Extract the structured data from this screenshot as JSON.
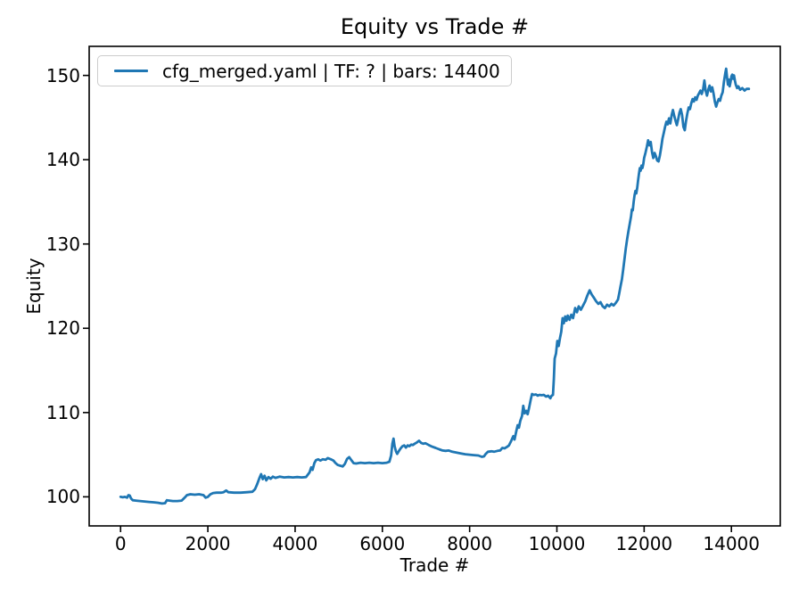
{
  "chart_data": {
    "type": "line",
    "title": "Equity vs Trade #",
    "xlabel": "Trade #",
    "ylabel": "Equity",
    "xlim": [
      -720,
      15120
    ],
    "ylim": [
      96.55,
      153.45
    ],
    "xticks": [
      0,
      2000,
      4000,
      6000,
      8000,
      10000,
      12000,
      14000
    ],
    "yticks": [
      100,
      110,
      120,
      130,
      140,
      150
    ],
    "grid": false,
    "legend_position": "upper left",
    "series": [
      {
        "name": "cfg_merged.yaml | TF: ? | bars: 14400",
        "color": "#1f77b4",
        "x": [
          0,
          50,
          100,
          150,
          180,
          210,
          240,
          280,
          350,
          450,
          550,
          650,
          750,
          850,
          950,
          1020,
          1060,
          1120,
          1200,
          1300,
          1400,
          1470,
          1520,
          1600,
          1700,
          1800,
          1900,
          1950,
          2000,
          2060,
          2120,
          2200,
          2300,
          2360,
          2420,
          2470,
          2600,
          2750,
          2900,
          3020,
          3080,
          3130,
          3180,
          3220,
          3260,
          3300,
          3340,
          3390,
          3440,
          3490,
          3550,
          3650,
          3750,
          3850,
          3950,
          4050,
          4150,
          4250,
          4330,
          4370,
          4400,
          4440,
          4480,
          4530,
          4580,
          4630,
          4700,
          4750,
          4820,
          4880,
          4920,
          4970,
          5030,
          5090,
          5140,
          5190,
          5240,
          5290,
          5340,
          5400,
          5500,
          5600,
          5700,
          5800,
          5900,
          6000,
          6100,
          6160,
          6200,
          6230,
          6255,
          6280,
          6310,
          6340,
          6380,
          6420,
          6460,
          6500,
          6540,
          6580,
          6620,
          6660,
          6700,
          6740,
          6790,
          6840,
          6890,
          6940,
          6990,
          7060,
          7140,
          7220,
          7300,
          7380,
          7450,
          7520,
          7600,
          7700,
          7800,
          7900,
          8000,
          8100,
          8200,
          8280,
          8330,
          8370,
          8420,
          8500,
          8560,
          8640,
          8700,
          8750,
          8800,
          8850,
          8900,
          8950,
          9000,
          9030,
          9070,
          9100,
          9130,
          9160,
          9200,
          9230,
          9260,
          9300,
          9330,
          9360,
          9400,
          9430,
          9470,
          9520,
          9560,
          9600,
          9650,
          9700,
          9750,
          9800,
          9850,
          9880,
          9910,
          9930,
          9950,
          9980,
          10010,
          10040,
          10070,
          10100,
          10130,
          10160,
          10190,
          10220,
          10250,
          10290,
          10330,
          10370,
          10420,
          10460,
          10500,
          10550,
          10600,
          10650,
          10700,
          10750,
          10800,
          10850,
          10900,
          10950,
          11000,
          11050,
          11100,
          11150,
          11200,
          11250,
          11300,
          11350,
          11400,
          11430,
          11460,
          11490,
          11520,
          11550,
          11580,
          11610,
          11640,
          11670,
          11700,
          11720,
          11740,
          11760,
          11780,
          11800,
          11820,
          11840,
          11860,
          11880,
          11900,
          11920,
          11940,
          11960,
          11980,
          12000,
          12030,
          12060,
          12090,
          12120,
          12150,
          12180,
          12210,
          12240,
          12270,
          12300,
          12330,
          12360,
          12390,
          12420,
          12450,
          12480,
          12510,
          12540,
          12570,
          12600,
          12630,
          12660,
          12690,
          12720,
          12750,
          12780,
          12810,
          12840,
          12870,
          12900,
          12930,
          12960,
          12990,
          13020,
          13050,
          13080,
          13110,
          13140,
          13170,
          13200,
          13230,
          13260,
          13290,
          13320,
          13350,
          13380,
          13410,
          13440,
          13470,
          13500,
          13530,
          13560,
          13590,
          13620,
          13650,
          13680,
          13710,
          13740,
          13770,
          13800,
          13830,
          13860,
          13880,
          13900,
          13920,
          13940,
          13960,
          13980,
          14000,
          14020,
          14040,
          14060,
          14080,
          14100,
          14130,
          14160,
          14200,
          14250,
          14300,
          14350,
          14400
        ],
        "y": [
          100,
          99.95,
          100,
          99.9,
          100.2,
          100.15,
          99.8,
          99.6,
          99.55,
          99.5,
          99.45,
          99.4,
          99.35,
          99.3,
          99.2,
          99.25,
          99.6,
          99.55,
          99.5,
          99.5,
          99.55,
          99.9,
          100.2,
          100.3,
          100.25,
          100.3,
          100.2,
          99.9,
          100,
          100.3,
          100.45,
          100.5,
          100.5,
          100.55,
          100.75,
          100.55,
          100.5,
          100.5,
          100.55,
          100.6,
          100.9,
          101.5,
          102.2,
          102.7,
          102.1,
          102.5,
          101.95,
          102.35,
          102.15,
          102.4,
          102.25,
          102.4,
          102.3,
          102.35,
          102.3,
          102.35,
          102.3,
          102.35,
          102.9,
          103.5,
          103.2,
          104,
          104.35,
          104.45,
          104.3,
          104.45,
          104.4,
          104.6,
          104.45,
          104.3,
          104.05,
          103.8,
          103.7,
          103.6,
          103.9,
          104.5,
          104.7,
          104.35,
          104,
          103.95,
          104.05,
          104,
          104.05,
          104,
          104.05,
          104,
          104.05,
          104.15,
          104.9,
          106.3,
          106.9,
          106,
          105.4,
          105.1,
          105.45,
          105.75,
          106,
          106.1,
          105.85,
          106.1,
          106,
          106.2,
          106.15,
          106.3,
          106.45,
          106.65,
          106.4,
          106.3,
          106.35,
          106.15,
          105.95,
          105.8,
          105.65,
          105.5,
          105.45,
          105.5,
          105.35,
          105.25,
          105.15,
          105.05,
          105,
          104.95,
          104.9,
          104.75,
          104.8,
          105.1,
          105.35,
          105.4,
          105.35,
          105.45,
          105.5,
          105.8,
          105.75,
          105.9,
          106.1,
          106.6,
          107.2,
          106.8,
          107.8,
          108.5,
          108.2,
          109,
          109.6,
          110.8,
          109.9,
          110.2,
          109.8,
          110.5,
          111.5,
          112.2,
          112.1,
          112.15,
          112,
          112.1,
          112.05,
          112.1,
          111.9,
          112,
          111.7,
          112,
          112.1,
          114,
          116.4,
          117,
          118.5,
          117.9,
          118.8,
          119.6,
          121.2,
          120.6,
          121.4,
          120.9,
          121.5,
          121,
          121.6,
          121.2,
          122.4,
          121.9,
          122.6,
          122.2,
          122.7,
          123.2,
          123.9,
          124.5,
          124,
          123.6,
          123.2,
          122.9,
          123.1,
          122.6,
          122.4,
          122.8,
          122.6,
          122.9,
          122.7,
          123,
          123.4,
          124.2,
          125,
          125.8,
          127,
          128.2,
          129.5,
          130.6,
          131.5,
          132.4,
          133.3,
          134.1,
          134,
          135,
          135.8,
          136.3,
          136,
          136.6,
          137.5,
          138.3,
          139,
          138.7,
          139.3,
          139,
          139.5,
          140.2,
          140.8,
          141.5,
          142.3,
          141.7,
          142.1,
          140.9,
          140.2,
          140.8,
          140.4,
          139.9,
          139.8,
          140.5,
          141.4,
          142.5,
          143.2,
          143.9,
          144.5,
          144.2,
          144.9,
          144.3,
          145.3,
          145.9,
          145.2,
          144.6,
          144.1,
          144.8,
          145.6,
          146,
          145.3,
          143.9,
          143.5,
          144.6,
          145.5,
          146.2,
          146,
          146.7,
          147.2,
          146.9,
          147.4,
          147.1,
          147.6,
          147.9,
          148.2,
          147.8,
          148.3,
          149.4,
          148.2,
          147.6,
          148.3,
          148.8,
          148.1,
          148.6,
          147.9,
          146.9,
          146.3,
          146.8,
          147.2,
          147,
          147.6,
          148,
          149.3,
          150.3,
          150.8,
          149.8,
          148.9,
          149.5,
          148.7,
          149.2,
          149.9,
          150.1,
          149.6,
          150,
          149.4,
          148.9,
          148.5,
          148.7,
          148.3,
          148.5,
          148.2,
          148.4,
          148.4
        ]
      }
    ]
  },
  "colors": {
    "axes": "#000000",
    "text": "#000000",
    "background": "#ffffff",
    "legend_border": "#cccccc",
    "line": "#1f77b4"
  }
}
